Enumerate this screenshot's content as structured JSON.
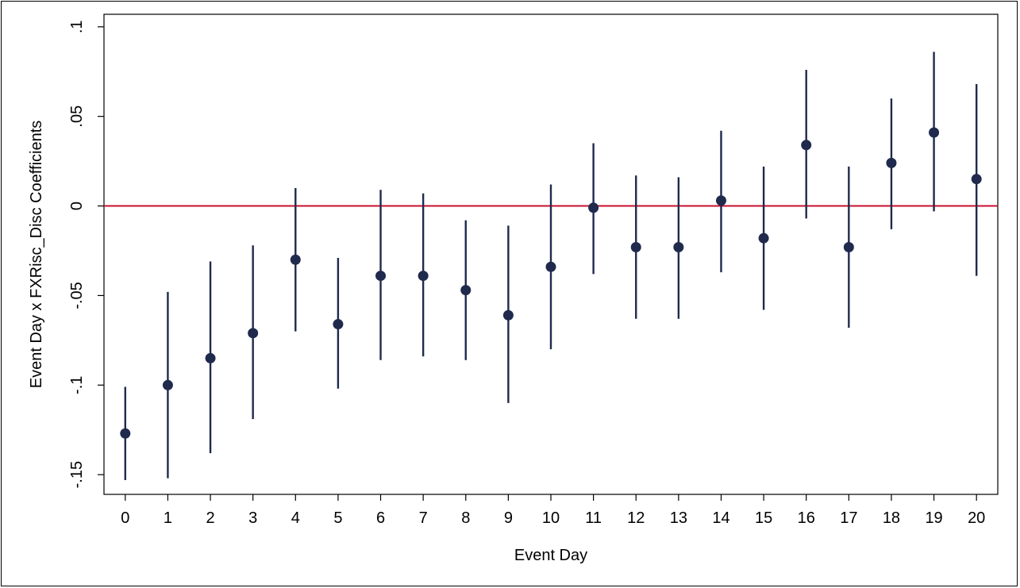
{
  "chart_data": {
    "type": "scatter",
    "subtype": "coefficient-plot-with-confidence-intervals",
    "xlabel": "Event Day",
    "ylabel": "Event Day x FXRisc_Disc Coefficients",
    "x": [
      0,
      1,
      2,
      3,
      4,
      5,
      6,
      7,
      8,
      9,
      10,
      11,
      12,
      13,
      14,
      15,
      16,
      17,
      18,
      19,
      20
    ],
    "x_tick_labels": [
      "0",
      "1",
      "2",
      "3",
      "4",
      "5",
      "6",
      "7",
      "8",
      "9",
      "10",
      "11",
      "12",
      "13",
      "14",
      "15",
      "16",
      "17",
      "18",
      "19",
      "20"
    ],
    "y_ticks": [
      -0.15,
      -0.1,
      -0.05,
      0,
      0.05,
      0.1
    ],
    "y_tick_labels": [
      "-.15",
      "-.1",
      "-.05",
      "0",
      ".05",
      ".1"
    ],
    "ylim": [
      -0.161,
      0.107
    ],
    "xlim": [
      -0.5,
      20.5
    ],
    "reference_line": {
      "y": 0,
      "color": "#c8102e"
    },
    "grid": false,
    "legend": "none",
    "series": [
      {
        "marker_color": "#1f2a4d",
        "estimate": [
          -0.127,
          -0.1,
          -0.085,
          -0.071,
          -0.03,
          -0.066,
          -0.039,
          -0.039,
          -0.047,
          -0.061,
          -0.034,
          -0.001,
          -0.023,
          -0.023,
          0.003,
          -0.018,
          0.034,
          -0.023,
          0.024,
          0.041,
          0.015
        ],
        "ci_lower": [
          -0.153,
          -0.152,
          -0.138,
          -0.119,
          -0.07,
          -0.102,
          -0.086,
          -0.084,
          -0.086,
          -0.11,
          -0.08,
          -0.038,
          -0.063,
          -0.063,
          -0.037,
          -0.058,
          -0.007,
          -0.068,
          -0.013,
          -0.003,
          -0.039
        ],
        "ci_upper": [
          -0.101,
          -0.048,
          -0.031,
          -0.022,
          0.01,
          -0.029,
          0.009,
          0.007,
          -0.008,
          -0.011,
          0.012,
          0.035,
          0.017,
          0.016,
          0.042,
          0.022,
          0.076,
          0.022,
          0.06,
          0.086,
          0.068
        ]
      }
    ]
  }
}
